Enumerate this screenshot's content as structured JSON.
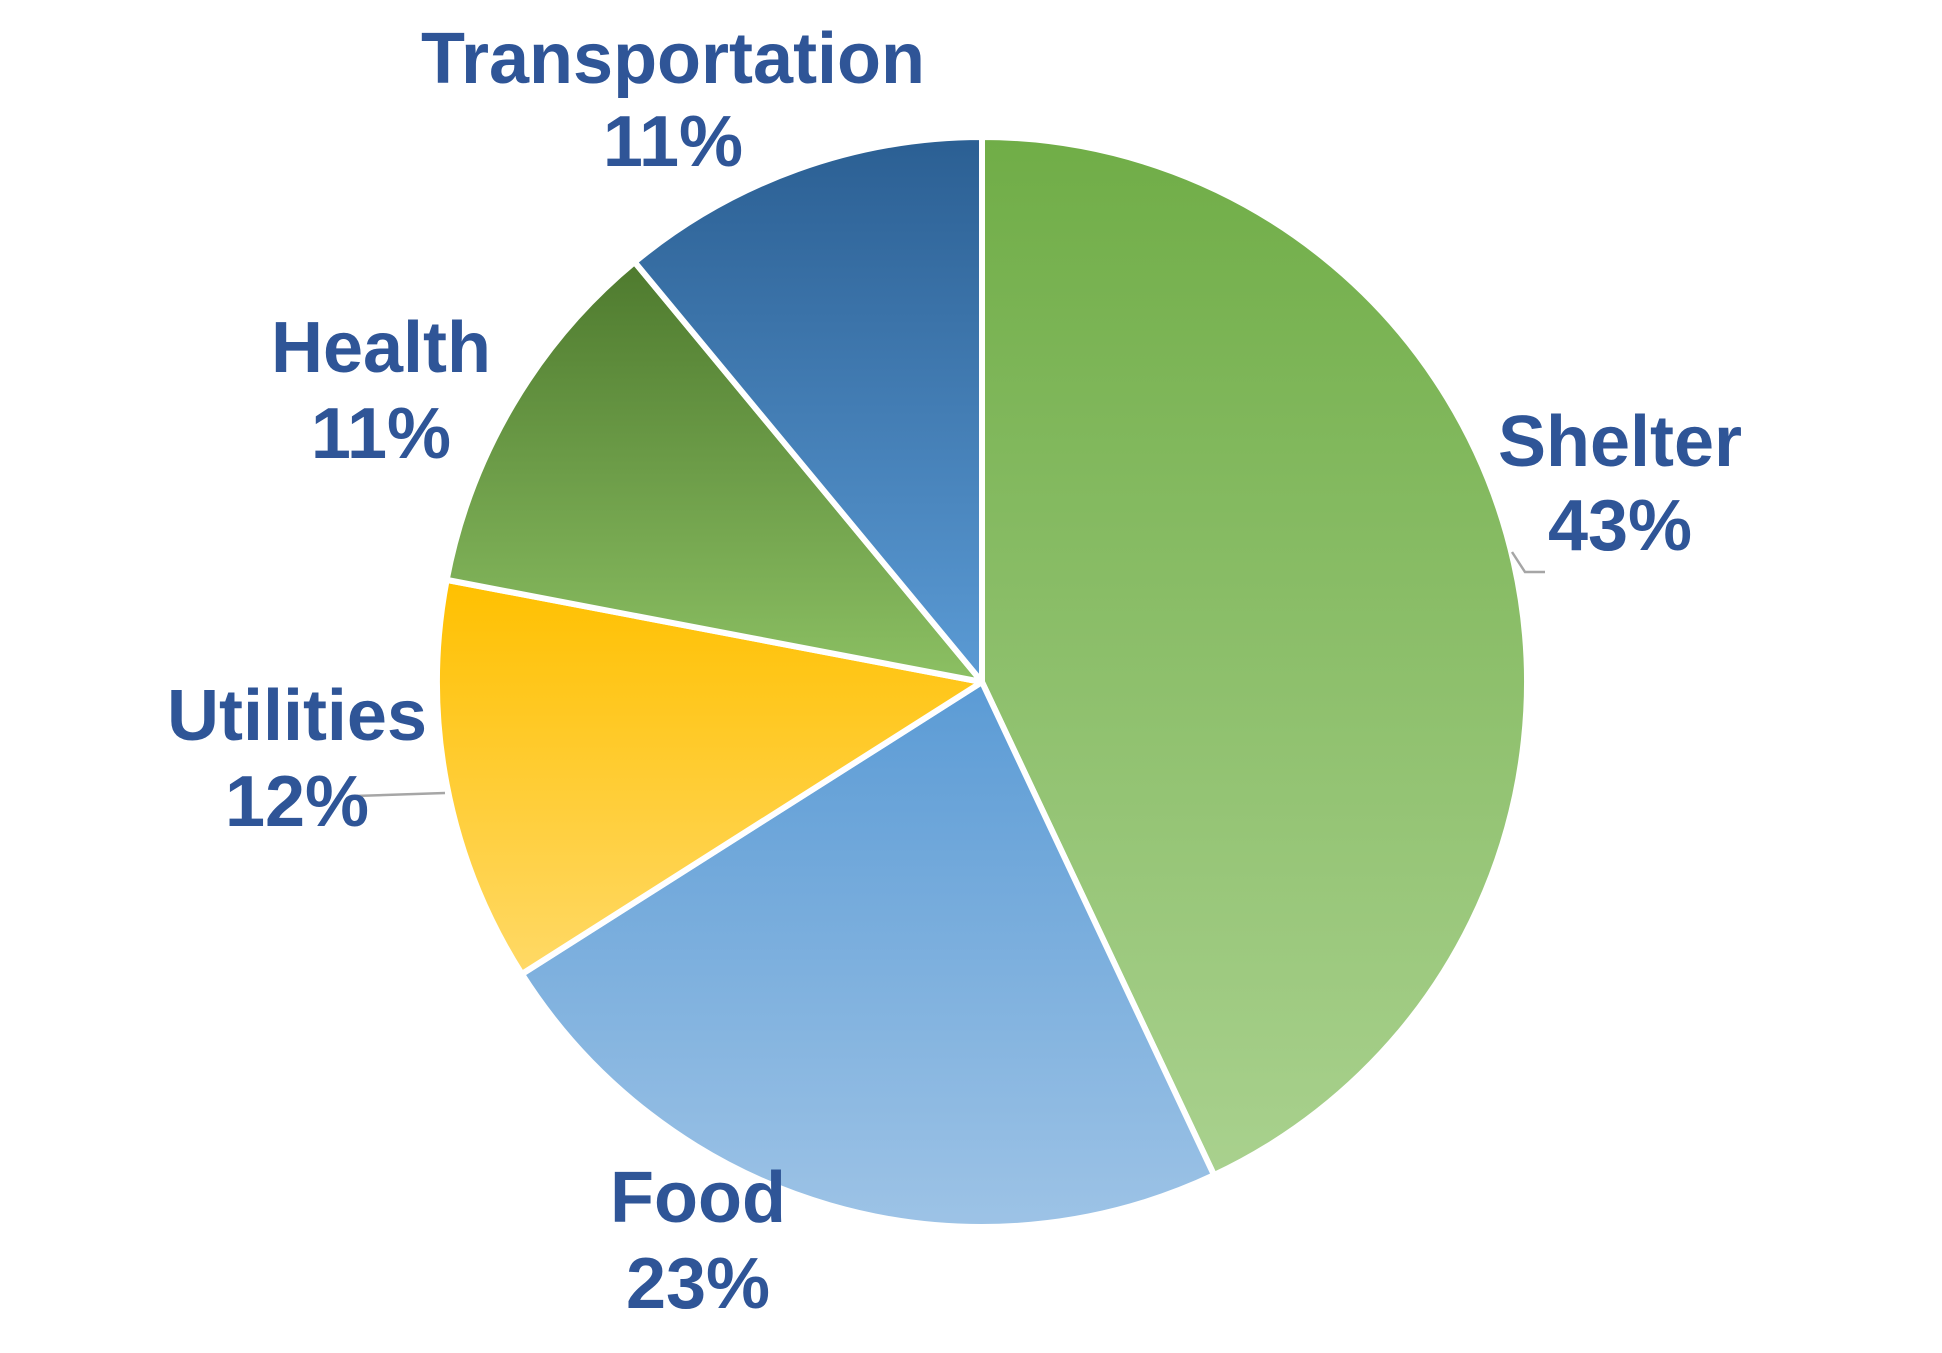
{
  "chart_data": {
    "type": "pie",
    "title": "",
    "slices": [
      {
        "label": "Shelter",
        "percent_label": "43%",
        "value": 43,
        "color_top": "#70AD47",
        "color_bottom": "#A9D18E"
      },
      {
        "label": "Food",
        "percent_label": "23%",
        "value": 23,
        "color_top": "#5B9BD5",
        "color_bottom": "#9DC3E6"
      },
      {
        "label": "Utilities",
        "percent_label": "12%",
        "value": 12,
        "color_top": "#FFC000",
        "color_bottom": "#FFD966"
      },
      {
        "label": "Health",
        "percent_label": "11%",
        "value": 11,
        "color_top": "#4E7A2E",
        "color_bottom": "#8CC063"
      },
      {
        "label": "Transportation",
        "percent_label": "11%",
        "value": 11,
        "color_top": "#2B5F93",
        "color_bottom": "#5B9BD5"
      }
    ],
    "start_angle": "12 o'clock",
    "direction": "clockwise",
    "label_color": "#2F5597",
    "legend": "none"
  }
}
